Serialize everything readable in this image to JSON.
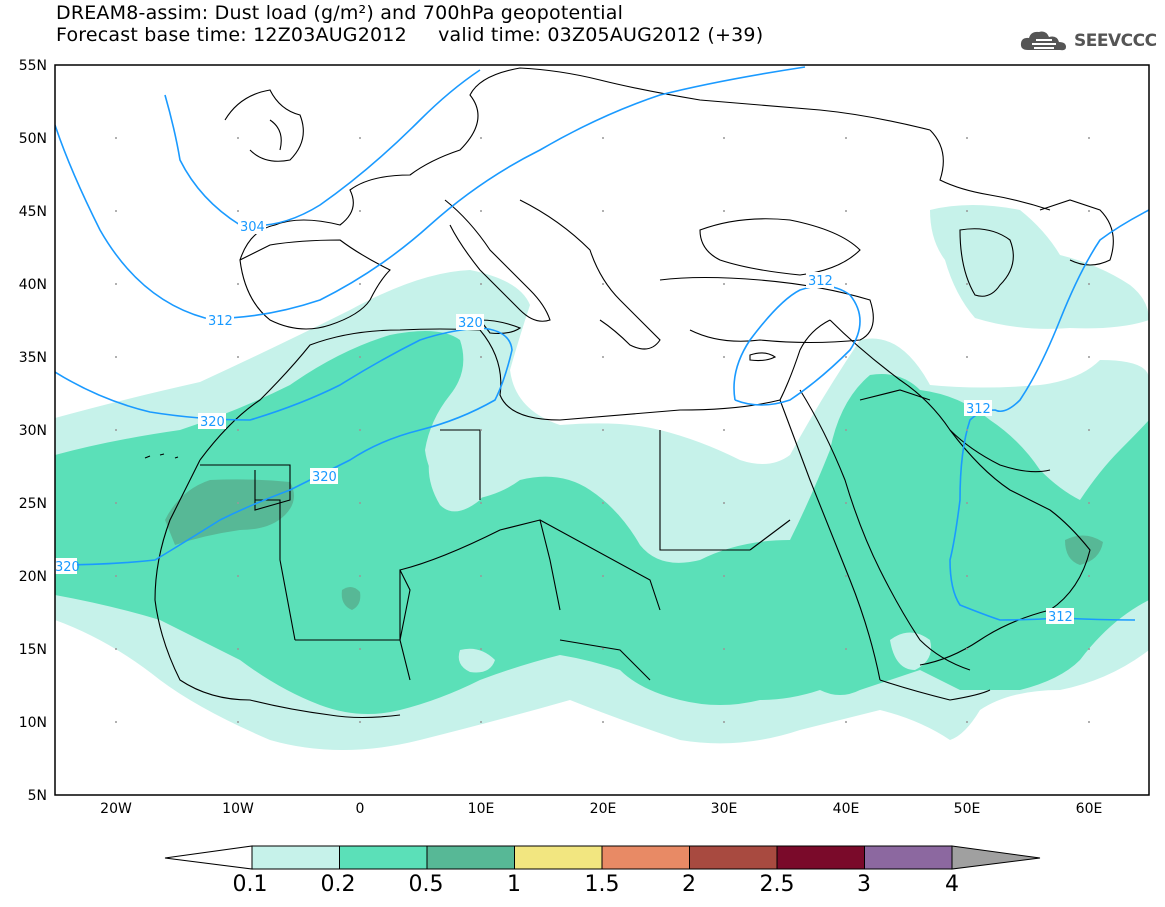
{
  "title": {
    "line1": "DREAM8-assim: Dust load (g/m²) and 700hPa geopotential",
    "line2": "Forecast base time: 12Z03AUG2012     valid time: 03Z05AUG2012 (+39)"
  },
  "logo": {
    "text": "SEEVCCC",
    "icon": "cloud-icon"
  },
  "map": {
    "lat_labels": [
      "55N",
      "50N",
      "45N",
      "40N",
      "35N",
      "30N",
      "25N",
      "20N",
      "15N",
      "10N",
      "5N"
    ],
    "lon_labels": [
      "20W",
      "10W",
      "0",
      "10E",
      "20E",
      "30E",
      "40E",
      "50E",
      "60E"
    ],
    "contour_labels": [
      "304",
      "312",
      "320",
      "320",
      "320",
      "320",
      "312",
      "312",
      "312"
    ]
  },
  "colorbar": {
    "colors": [
      "#c6f2ea",
      "#5be0b8",
      "#57b896",
      "#f2e680",
      "#e88a65",
      "#a84a40",
      "#7a0a2a",
      "#8c68a0",
      "#a0a0a0"
    ],
    "labels": [
      "0.1",
      "0.2",
      "0.5",
      "1",
      "1.5",
      "2",
      "2.5",
      "3",
      "4"
    ]
  },
  "legend_colors": {
    "light": "#c6f2ea",
    "medium": "#5be0b8",
    "dark": "#57b896",
    "contour": "#1a9aff"
  }
}
